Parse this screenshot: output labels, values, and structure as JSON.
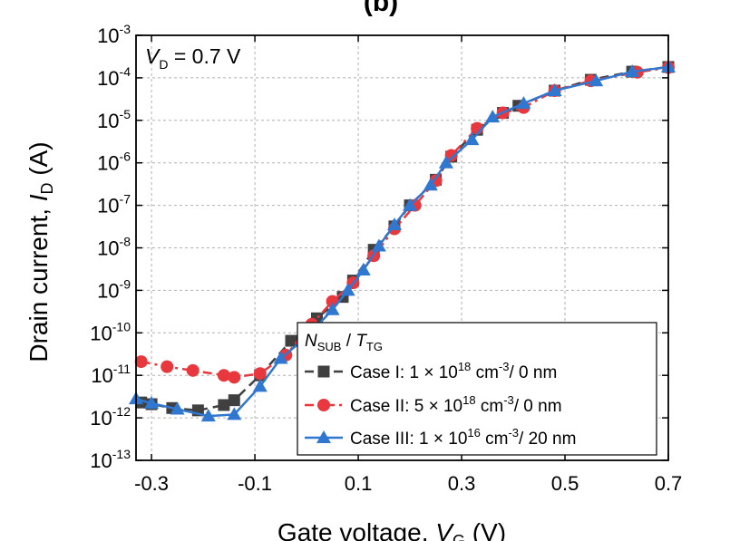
{
  "panel_label": "(b)",
  "annotation": {
    "var": "V",
    "sub": "D",
    "text": " = 0.7 V"
  },
  "chart_data": {
    "type": "line",
    "xlabel": "Gate voltage, V_G (V)",
    "ylabel": "Drain current, I_D (A)",
    "xlim": [
      -0.33,
      0.7
    ],
    "ylim_log10": [
      -13,
      -3
    ],
    "y_scale": "log",
    "x_ticks": [
      -0.3,
      -0.1,
      0.1,
      0.3,
      0.5,
      0.7
    ],
    "x_tick_labels": [
      "-0.3",
      "-0.1",
      "0.1",
      "0.3",
      "0.5",
      "0.7"
    ],
    "y_tick_labels": [
      "10-13",
      "10-12",
      "10-11",
      "10-10",
      "10-9",
      "10-8",
      "10-7",
      "10-6",
      "10-5",
      "10-4",
      "10-3"
    ],
    "grid": true,
    "legend_title": {
      "a": "N",
      "a_sub": "SUB",
      "sep": " / ",
      "b": "T",
      "b_sub": "TG"
    },
    "legend_position": "bottom-right",
    "series": [
      {
        "name": "Case I: 1 × 10^18 cm^-3 / 0 nm",
        "color": "#404040",
        "marker": "square",
        "line": "dash",
        "x": [
          -0.32,
          -0.3,
          -0.26,
          -0.21,
          -0.16,
          -0.14,
          -0.09,
          -0.03,
          0.02,
          0.07,
          0.09,
          0.13,
          0.17,
          0.2,
          0.25,
          0.28,
          0.33,
          0.38,
          0.41,
          0.48,
          0.55,
          0.63,
          0.7
        ],
        "y": [
          2.3e-12,
          2.1e-12,
          1.7e-12,
          1.5e-12,
          2e-12,
          2.6e-12,
          1e-11,
          6.5e-11,
          2.2e-10,
          7e-10,
          1.7e-09,
          9e-09,
          3.2e-08,
          1e-07,
          4e-07,
          1.4e-06,
          6e-06,
          1.5e-05,
          2.2e-05,
          5e-05,
          9e-05,
          0.00014,
          0.00018
        ]
      },
      {
        "name": "Case II: 5 × 10^18 cm^-3 / 0 nm",
        "color": "#e8383d",
        "marker": "circle",
        "line": "dashdot",
        "x": [
          -0.32,
          -0.27,
          -0.22,
          -0.16,
          -0.14,
          -0.09,
          -0.04,
          0.01,
          0.05,
          0.09,
          0.13,
          0.17,
          0.21,
          0.25,
          0.28,
          0.33,
          0.38,
          0.42,
          0.48,
          0.55,
          0.64,
          0.7
        ],
        "y": [
          2.1e-11,
          1.6e-11,
          1.3e-11,
          1e-11,
          9e-12,
          1.1e-11,
          3e-11,
          1.6e-10,
          5.5e-10,
          1.5e-09,
          6.5e-09,
          2.8e-08,
          1e-07,
          3.8e-07,
          1.5e-06,
          6.5e-06,
          1.5e-05,
          2e-05,
          5e-05,
          8.5e-05,
          0.000135,
          0.000175
        ]
      },
      {
        "name": "Case III: 1 × 10^16 cm^-3 / 20 nm",
        "color": "#2f77d0",
        "marker": "triangle",
        "line": "solid",
        "x": [
          -0.33,
          -0.3,
          -0.25,
          -0.19,
          -0.14,
          -0.09,
          -0.05,
          0.0,
          0.05,
          0.08,
          0.11,
          0.14,
          0.17,
          0.2,
          0.24,
          0.27,
          0.32,
          0.36,
          0.42,
          0.48,
          0.56,
          0.63,
          0.7
        ],
        "y": [
          2.8e-12,
          2.2e-12,
          1.6e-12,
          1.1e-12,
          1.2e-12,
          5.5e-12,
          2.5e-11,
          8e-11,
          3.5e-10,
          1e-09,
          3e-09,
          1.1e-08,
          3.5e-08,
          1e-07,
          3e-07,
          1e-06,
          3.5e-06,
          1.2e-05,
          2.5e-05,
          5e-05,
          8.5e-05,
          0.00014,
          0.00018
        ]
      }
    ]
  },
  "legend": {
    "rows": [
      {
        "case": "Case I",
        "mid": ": 1 × 10",
        "exp": "18",
        "rest": " cm",
        "exp2": "-3",
        "tail": "/ 0 nm"
      },
      {
        "case": "Case II",
        "mid": ": 5 × 10",
        "exp": "18",
        "rest": " cm",
        "exp2": "-3",
        "tail": "/ 0 nm"
      },
      {
        "case": "Case III",
        "mid": ": 1 × 10",
        "exp": "16",
        "rest": " cm",
        "exp2": "-3",
        "tail": "/ 20 nm"
      }
    ]
  }
}
